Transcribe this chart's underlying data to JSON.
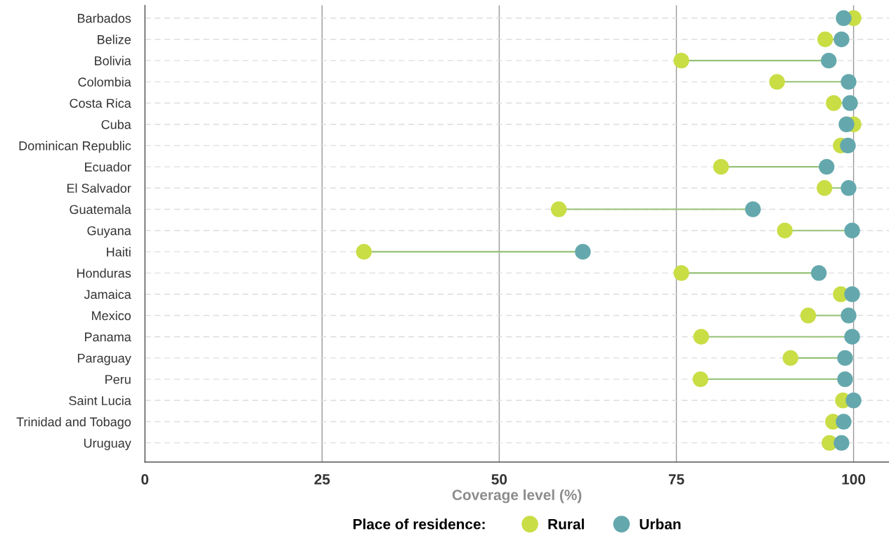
{
  "chart_data": {
    "type": "scatter",
    "orientation": "horizontal",
    "xlabel": "Coverage level (%)",
    "legend_title": "Place of residence:",
    "legend": "bottom",
    "grid": true,
    "marker": "circle",
    "categories": [
      "Barbados",
      "Belize",
      "Bolivia",
      "Colombia",
      "Costa Rica",
      "Cuba",
      "Dominican Republic",
      "Ecuador",
      "El Salvador",
      "Guatemala",
      "Guyana",
      "Haiti",
      "Honduras",
      "Jamaica",
      "Mexico",
      "Panama",
      "Paraguay",
      "Peru",
      "Saint Lucia",
      "Trinidad and Tobago",
      "Uruguay"
    ],
    "xlim": [
      0,
      105
    ],
    "xticks": [
      0,
      25,
      50,
      75,
      100
    ],
    "series": [
      {
        "name": "Rural",
        "color": "#c9dd45",
        "values": [
          100,
          96.0,
          75.7,
          89.2,
          97.2,
          100,
          98.2,
          81.3,
          95.9,
          58.4,
          90.3,
          30.9,
          75.7,
          98.2,
          93.6,
          78.5,
          91.1,
          78.4,
          98.5,
          97.1,
          96.6
        ]
      },
      {
        "name": "Urban",
        "color": "#64a8ad",
        "values": [
          98.6,
          98.3,
          96.5,
          99.3,
          99.5,
          99.0,
          99.2,
          96.2,
          99.3,
          85.8,
          99.8,
          61.8,
          95.1,
          99.8,
          99.3,
          99.8,
          98.8,
          98.8,
          100,
          98.6,
          98.3
        ]
      }
    ]
  }
}
